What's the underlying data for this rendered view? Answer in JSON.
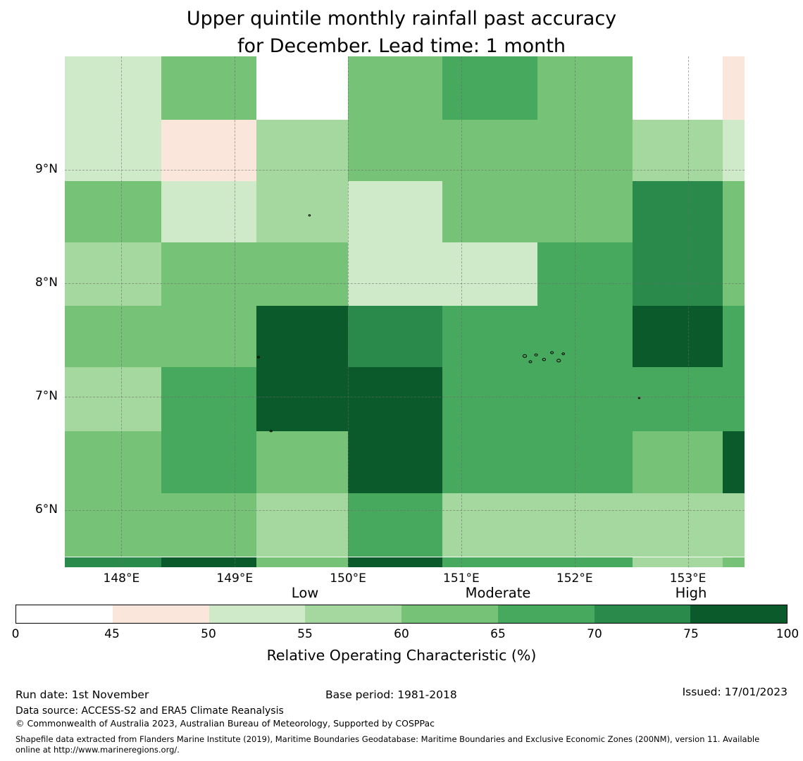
{
  "title": {
    "line1": "Upper quintile monthly rainfall past accuracy",
    "line2": "for December. Lead time: 1 month"
  },
  "chart_data": {
    "type": "heatmap",
    "title": "Upper quintile monthly rainfall past accuracy for December. Lead time: 1 month",
    "value_label": "Relative Operating Characteristic (%)",
    "lon_range": [
      147.5,
      153.5
    ],
    "lat_range": [
      5.5,
      10.0
    ],
    "lon_edges": [
      147.5,
      148.35,
      149.19,
      150.0,
      150.83,
      151.67,
      152.51,
      153.31,
      153.5
    ],
    "lat_edges": [
      10.0,
      9.44,
      8.9,
      8.36,
      7.8,
      7.26,
      6.7,
      6.15,
      5.59,
      5.5
    ],
    "palette": {
      "w": {
        "hex": "#ffffff",
        "range": "0-45"
      },
      "p": {
        "hex": "#fbe6dc",
        "range": "45-50"
      },
      "g1": {
        "hex": "#cfeac8",
        "range": "50-55"
      },
      "g2": {
        "hex": "#a5d89e",
        "range": "55-60"
      },
      "g3": {
        "hex": "#76c276",
        "range": "60-65"
      },
      "g4": {
        "hex": "#47a95e",
        "range": "65-70"
      },
      "g5": {
        "hex": "#2a8a4b",
        "range": "70-75"
      },
      "g6": {
        "hex": "#0a5a2c",
        "range": "75-100"
      }
    },
    "cells": [
      [
        "g1",
        "g3",
        "w",
        "g3",
        "g4",
        "g3",
        "w",
        "p"
      ],
      [
        "g1",
        "p",
        "g2",
        "g3",
        "g3",
        "g3",
        "g2",
        "g1"
      ],
      [
        "g3",
        "g1",
        "g2",
        "g1",
        "g3",
        "g3",
        "g5",
        "g3"
      ],
      [
        "g2",
        "g3",
        "g3",
        "g1",
        "g1",
        "g4",
        "g5",
        "g3"
      ],
      [
        "g3",
        "g3",
        "g6",
        "g5",
        "g4",
        "g4",
        "g6",
        "g4"
      ],
      [
        "g2",
        "g4",
        "g6",
        "g6",
        "g4",
        "g4",
        "g4",
        "g4"
      ],
      [
        "g3",
        "g4",
        "g3",
        "g6",
        "g4",
        "g4",
        "g3",
        "g6"
      ],
      [
        "g3",
        "g3",
        "g2",
        "g4",
        "g2",
        "g2",
        "g2",
        "g2"
      ],
      [
        "g5",
        "g6",
        "g3",
        "g6",
        "g4",
        "g4",
        "g2",
        "g3"
      ]
    ],
    "gridlines": {
      "lons": [
        148,
        149,
        150,
        151,
        152,
        153
      ],
      "lats": [
        9,
        8,
        7,
        6
      ]
    },
    "x_ticks": [
      {
        "value": 148,
        "label": "148°E"
      },
      {
        "value": 149,
        "label": "149°E"
      },
      {
        "value": 150,
        "label": "150°E"
      },
      {
        "value": 151,
        "label": "151°E"
      },
      {
        "value": 152,
        "label": "152°E"
      },
      {
        "value": 153,
        "label": "153°E"
      }
    ],
    "y_ticks": [
      {
        "value": 9,
        "label": "9°N"
      },
      {
        "value": 8,
        "label": "8°N"
      },
      {
        "value": 7,
        "label": "7°N"
      },
      {
        "value": 6,
        "label": "6°N"
      }
    ],
    "islands": [
      {
        "lon": 149.66,
        "lat": 8.6,
        "r": 1.3
      },
      {
        "lon": 149.21,
        "lat": 7.35,
        "r": 1.5
      },
      {
        "lon": 149.32,
        "lat": 6.7,
        "r": 1.5
      },
      {
        "lon": 151.56,
        "lat": 7.36,
        "r": 2.6
      },
      {
        "lon": 151.61,
        "lat": 7.31,
        "r": 2.0
      },
      {
        "lon": 151.66,
        "lat": 7.37,
        "r": 2.0
      },
      {
        "lon": 151.73,
        "lat": 7.33,
        "r": 2.2
      },
      {
        "lon": 151.8,
        "lat": 7.39,
        "r": 2.0
      },
      {
        "lon": 151.86,
        "lat": 7.32,
        "r": 2.6
      },
      {
        "lon": 151.9,
        "lat": 7.38,
        "r": 1.8
      },
      {
        "lon": 152.57,
        "lat": 6.99,
        "r": 1.2
      }
    ]
  },
  "colorbar": {
    "segment_codes": [
      "w",
      "p",
      "g1",
      "g2",
      "g3",
      "g4",
      "g5",
      "g6"
    ],
    "ticks": [
      "0",
      "45",
      "50",
      "55",
      "60",
      "65",
      "70",
      "75",
      "100"
    ],
    "qualitative": [
      {
        "text": "Low",
        "above_tick": "55"
      },
      {
        "text": "Moderate",
        "above_tick": "65"
      },
      {
        "text": "High",
        "above_tick": "75"
      }
    ],
    "label": "Relative Operating Characteristic (%)"
  },
  "footer": {
    "run_date": "Run date: 1st November",
    "base_period": "Base period: 1981-2018",
    "issued": "Issued: 17/01/2023",
    "data_source": "Data source: ACCESS-S2 and ERA5 Climate Reanalysis",
    "copyright": "© Commonwealth of Australia 2023, Australian Bureau of Meteorology, Supported by COSPPac",
    "shapefile": "Shapefile data extracted from Flanders Marine Institute (2019), Maritime Boundaries Geodatabase: Maritime Boundaries and Exclusive Economic Zones (200NM), version 11. Available online at http://www.marineregions.org/."
  }
}
